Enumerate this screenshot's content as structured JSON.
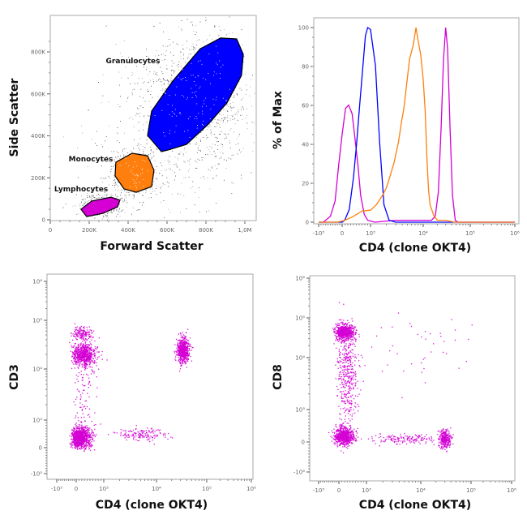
{
  "colors": {
    "granulocytes": "#0000ff",
    "monocytes": "#ff7f0e",
    "lymphocytes": "#d400d4",
    "background_events": "#555555",
    "frame": "#aaaaaa"
  },
  "chart_data": [
    {
      "type": "scatter",
      "xlabel": "Forward Scatter",
      "ylabel": "Side Scatter",
      "xlim": [
        0,
        1050000
      ],
      "ylim": [
        0,
        950000
      ],
      "xticks": [
        {
          "v": 0,
          "label": "0"
        },
        {
          "v": 200000,
          "label": "200K"
        },
        {
          "v": 400000,
          "label": "400K"
        },
        {
          "v": 600000,
          "label": "600K"
        },
        {
          "v": 800000,
          "label": "800K"
        },
        {
          "v": 1000000,
          "label": "1,0M"
        }
      ],
      "yticks": [
        {
          "v": 0,
          "label": "0"
        },
        {
          "v": 200000,
          "label": "200K"
        },
        {
          "v": 400000,
          "label": "400K"
        },
        {
          "v": 600000,
          "label": "600K"
        },
        {
          "v": 800000,
          "label": "800K"
        }
      ],
      "gates": [
        {
          "name": "Granulocytes",
          "color": "#0000ff",
          "polygon": [
            [
              571000,
              325000
            ],
            [
              500000,
              402000
            ],
            [
              521000,
              518000
            ],
            [
              629000,
              661000
            ],
            [
              771000,
              815000
            ],
            [
              875000,
              866000
            ],
            [
              958000,
              862000
            ],
            [
              992000,
              788000
            ],
            [
              983000,
              688000
            ],
            [
              908000,
              557000
            ],
            [
              813000,
              456000
            ],
            [
              700000,
              359000
            ],
            [
              604000,
              332000
            ]
          ]
        },
        {
          "name": "Monocytes",
          "color": "#ff7f0e",
          "polygon": [
            [
              337000,
              274000
            ],
            [
              421000,
              317000
            ],
            [
              500000,
              305000
            ],
            [
              533000,
              236000
            ],
            [
              521000,
              158000
            ],
            [
              442000,
              131000
            ],
            [
              379000,
              147000
            ],
            [
              333000,
              209000
            ]
          ]
        },
        {
          "name": "Lymphocytes",
          "color": "#d400d4",
          "polygon": [
            [
              158000,
              50000
            ],
            [
              212000,
              89000
            ],
            [
              312000,
              108000
            ],
            [
              358000,
              93000
            ],
            [
              346000,
              62000
            ],
            [
              271000,
              31000
            ],
            [
              187000,
              15000
            ]
          ]
        }
      ],
      "populations": [
        {
          "x": 760000,
          "y": 600000,
          "sd": [
            130000,
            150000
          ],
          "n": 900
        },
        {
          "x": 430000,
          "y": 220000,
          "sd": [
            70000,
            60000
          ],
          "n": 450
        },
        {
          "x": 260000,
          "y": 70000,
          "sd": [
            60000,
            30000
          ],
          "n": 350
        },
        {
          "x": 650000,
          "y": 400000,
          "sd": [
            220000,
            200000
          ],
          "n": 500
        }
      ]
    },
    {
      "type": "line",
      "xlabel": "CD4 (clone OKT4)",
      "ylabel": "% of Max",
      "xscale": "biexponential",
      "ylim": [
        0,
        100
      ],
      "xticks": [
        {
          "v": -1000,
          "label": "-10³"
        },
        {
          "v": 0,
          "label": "0"
        },
        {
          "v": 1000,
          "label": "10³"
        },
        {
          "v": 10000,
          "label": "10⁴"
        },
        {
          "v": 100000,
          "label": "10⁵"
        },
        {
          "v": 1000000,
          "label": "10⁶"
        }
      ],
      "yticks": [
        {
          "v": 0,
          "label": "0"
        },
        {
          "v": 20,
          "label": "20"
        },
        {
          "v": 40,
          "label": "40"
        },
        {
          "v": 60,
          "label": "60"
        },
        {
          "v": 80,
          "label": "80"
        },
        {
          "v": 100,
          "label": "100"
        }
      ],
      "series": [
        {
          "color": "#d400d4",
          "points": [
            [
              -1000,
              0
            ],
            [
              -800,
              0
            ],
            [
              -500,
              3
            ],
            [
              -300,
              12
            ],
            [
              -150,
              30
            ],
            [
              0,
              45
            ],
            [
              120,
              57
            ],
            [
              230,
              60
            ],
            [
              350,
              55
            ],
            [
              450,
              45
            ],
            [
              550,
              30
            ],
            [
              650,
              15
            ],
            [
              780,
              4
            ],
            [
              900,
              1
            ],
            [
              1200,
              0
            ],
            [
              3000,
              1
            ],
            [
              6000,
              1
            ],
            [
              10000,
              1
            ],
            [
              15000,
              1
            ],
            [
              18000,
              3
            ],
            [
              21000,
              15
            ],
            [
              24000,
              50
            ],
            [
              27000,
              85
            ],
            [
              30000,
              100
            ],
            [
              33000,
              90
            ],
            [
              37000,
              50
            ],
            [
              42000,
              12
            ],
            [
              48000,
              1
            ],
            [
              55000,
              0
            ],
            [
              1000000,
              0
            ]
          ]
        },
        {
          "color": "#0000ff",
          "points": [
            [
              -1000,
              0
            ],
            [
              0,
              0
            ],
            [
              90,
              1
            ],
            [
              250,
              8
            ],
            [
              400,
              22
            ],
            [
              510,
              40
            ],
            [
              620,
              60
            ],
            [
              730,
              80
            ],
            [
              820,
              95
            ],
            [
              900,
              100
            ],
            [
              1000,
              99
            ],
            [
              1240,
              80
            ],
            [
              1480,
              40
            ],
            [
              1800,
              10
            ],
            [
              2250,
              1
            ],
            [
              3000,
              0
            ],
            [
              1000000,
              0
            ]
          ]
        },
        {
          "color": "#ff7f0e",
          "points": [
            [
              -1000,
              0
            ],
            [
              -200,
              0
            ],
            [
              100,
              1
            ],
            [
              400,
              3
            ],
            [
              700,
              5
            ],
            [
              1000,
              6
            ],
            [
              1300,
              8
            ],
            [
              1700,
              12
            ],
            [
              2000,
              16
            ],
            [
              2300,
              22
            ],
            [
              2800,
              30
            ],
            [
              3400,
              40
            ],
            [
              3900,
              52
            ],
            [
              4300,
              60
            ],
            [
              4900,
              72
            ],
            [
              5500,
              82
            ],
            [
              6500,
              90
            ],
            [
              7300,
              100
            ],
            [
              8000,
              92
            ],
            [
              9000,
              85
            ],
            [
              10000,
              72
            ],
            [
              11000,
              58
            ],
            [
              12000,
              32
            ],
            [
              13000,
              18
            ],
            [
              14000,
              9
            ],
            [
              17000,
              3
            ],
            [
              20000,
              1
            ],
            [
              30000,
              1
            ],
            [
              46000,
              0
            ],
            [
              1000000,
              0
            ]
          ]
        }
      ]
    },
    {
      "type": "scatter",
      "xlabel": "CD4 (clone OKT4)",
      "ylabel": "CD3",
      "xscale": "biexponential",
      "yscale": "biexponential",
      "xticks": [
        {
          "v": -1000,
          "label": "-10³"
        },
        {
          "v": 0,
          "label": "0"
        },
        {
          "v": 1000,
          "label": "10³"
        },
        {
          "v": 10000,
          "label": "10⁴"
        },
        {
          "v": 100000,
          "label": "10⁵"
        },
        {
          "v": 1000000,
          "label": "10⁶"
        }
      ],
      "yticks": [
        {
          "v": -1000,
          "label": "-10³"
        },
        {
          "v": 0,
          "label": "0"
        },
        {
          "v": 1000,
          "label": "10³"
        },
        {
          "v": 10000,
          "label": "10⁴"
        },
        {
          "v": 100000,
          "label": "10⁵"
        },
        {
          "v": 1000000,
          "label": "10⁶"
        }
      ],
      "color": "#d400d4",
      "populations": [
        {
          "x": 250,
          "y": 20000,
          "sd": [
            0.22,
            0.12
          ],
          "n": 700
        },
        {
          "x": 200,
          "y": 55000,
          "sd": [
            0.2,
            0.07
          ],
          "n": 150
        },
        {
          "x": 33000,
          "y": 25000,
          "sd": [
            0.06,
            0.13
          ],
          "n": 600
        },
        {
          "x": 150,
          "y": 400,
          "sd": [
            0.2,
            0.2
          ],
          "n": 900
        },
        {
          "x": 5000,
          "y": 500,
          "sd": [
            0.25,
            0.12
          ],
          "n": 150
        },
        {
          "x": 300,
          "y": 3000,
          "sd": [
            0.2,
            0.35
          ],
          "n": 80
        }
      ]
    },
    {
      "type": "scatter",
      "xlabel": "CD4 (clone OKT4)",
      "ylabel": "CD8",
      "xscale": "biexponential",
      "yscale": "biexponential",
      "xticks": [
        {
          "v": -1000,
          "label": "-10³"
        },
        {
          "v": 0,
          "label": "0"
        },
        {
          "v": 1000,
          "label": "10³"
        },
        {
          "v": 10000,
          "label": "10⁴"
        },
        {
          "v": 100000,
          "label": "10⁵"
        },
        {
          "v": 1000000,
          "label": "10⁶"
        }
      ],
      "yticks": [
        {
          "v": -1000,
          "label": "-10³"
        },
        {
          "v": 0,
          "label": "0"
        },
        {
          "v": 1000,
          "label": "10³"
        },
        {
          "v": 10000,
          "label": "10⁴"
        },
        {
          "v": 100000,
          "label": "10⁵"
        },
        {
          "v": 1000000,
          "label": "10⁶"
        }
      ],
      "color": "#d400d4",
      "populations": [
        {
          "x": 200,
          "y": 45000,
          "sd": [
            0.18,
            0.1
          ],
          "n": 600
        },
        {
          "x": 150,
          "y": 200,
          "sd": [
            0.2,
            0.15
          ],
          "n": 700
        },
        {
          "x": 30000,
          "y": 100,
          "sd": [
            0.06,
            0.15
          ],
          "n": 300
        },
        {
          "x": 5000,
          "y": 100,
          "sd": [
            0.3,
            0.08
          ],
          "n": 150
        },
        {
          "x": 300,
          "y": 5000,
          "sd": [
            0.2,
            0.5
          ],
          "n": 400
        },
        {
          "x": 8000,
          "y": 20000,
          "sd": [
            0.5,
            0.4
          ],
          "n": 40
        }
      ]
    }
  ]
}
